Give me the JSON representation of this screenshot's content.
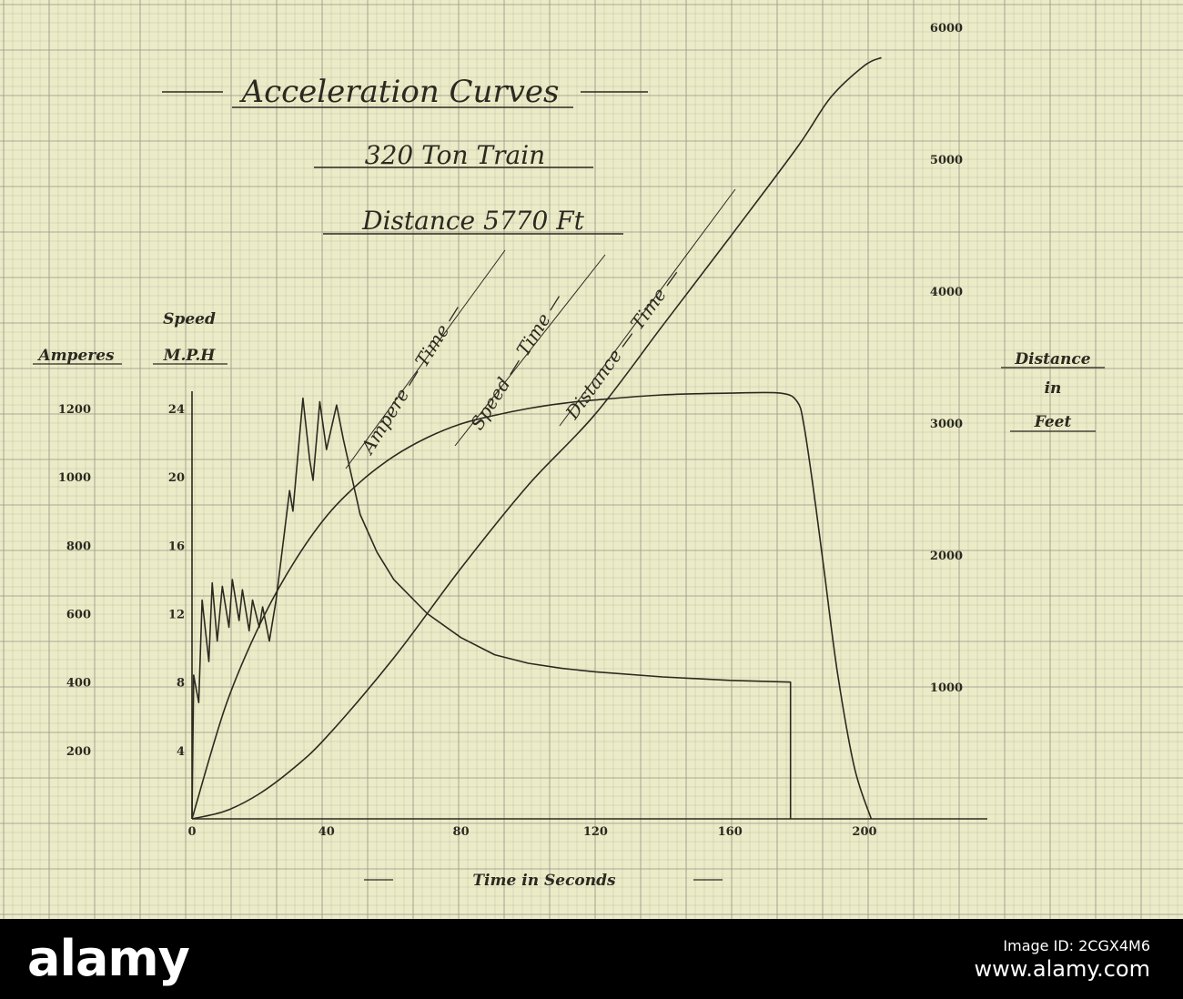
{
  "titles": {
    "main": "Acceleration Curves",
    "train": "320 Ton Train",
    "distance": "Distance 5770 Ft"
  },
  "axis_labels": {
    "amperes": "Amperes",
    "speed_line1": "Speed",
    "speed_line2": "M.P.H",
    "distance_line1": "Distance",
    "distance_line2": "in",
    "distance_line3": "Feet",
    "time": "Time in Seconds"
  },
  "curve_labels": {
    "ampere": "Ampere — Time —",
    "speed": "Speed — Time —",
    "distance": "Distance — Time —"
  },
  "colors": {
    "paper": "#ecebc8",
    "grid": "#9a9a8a",
    "ink": "#2a2a20"
  },
  "chart_data": {
    "type": "line",
    "title": "Acceleration Curves",
    "subtitle": "320 Ton Train — Distance 5770 Ft",
    "xlabel": "Time in Seconds",
    "xlim": [
      0,
      200
    ],
    "x_ticks": [
      "0",
      "40",
      "80",
      "120",
      "160",
      "200"
    ],
    "axes": {
      "amperes": {
        "label": "Amperes",
        "range": [
          0,
          1200
        ],
        "ticks": [
          "200",
          "400",
          "600",
          "800",
          "1000",
          "1200"
        ]
      },
      "speed": {
        "label": "Speed M.P.H",
        "range": [
          0,
          24
        ],
        "ticks": [
          "4",
          "8",
          "12",
          "16",
          "20",
          "24"
        ]
      },
      "distance": {
        "label": "Distance in Feet",
        "range": [
          0,
          6000
        ],
        "ticks": [
          "1000",
          "2000",
          "3000",
          "4000",
          "5000",
          "6000"
        ]
      }
    },
    "grid": true,
    "series": [
      {
        "name": "Ampere — Time —",
        "axis": "amperes",
        "x": [
          0,
          0.5,
          2,
          3,
          5,
          6,
          7.5,
          9,
          11,
          12,
          14,
          15,
          17,
          18,
          20,
          21,
          23,
          25,
          29,
          30,
          33,
          35,
          36,
          38,
          40,
          43,
          45,
          50,
          55,
          60,
          70,
          80,
          90,
          100,
          110,
          120,
          140,
          160,
          178,
          178
        ],
        "y": [
          0,
          420,
          340,
          640,
          460,
          690,
          520,
          680,
          560,
          700,
          580,
          670,
          550,
          640,
          560,
          620,
          520,
          640,
          960,
          900,
          1230,
          1050,
          990,
          1220,
          1080,
          1210,
          1110,
          890,
          780,
          700,
          600,
          530,
          480,
          455,
          440,
          430,
          415,
          405,
          400,
          0
        ]
      },
      {
        "name": "Speed — Time —",
        "axis": "speed",
        "x": [
          0,
          10,
          20,
          30,
          40,
          50,
          60,
          70,
          80,
          90,
          100,
          110,
          120,
          140,
          160,
          175,
          180,
          182,
          185,
          188,
          192,
          197,
          202
        ],
        "y": [
          0,
          6.6,
          11.3,
          14.9,
          17.7,
          19.7,
          21.2,
          22.3,
          23.1,
          23.6,
          24.0,
          24.3,
          24.5,
          24.8,
          24.9,
          24.9,
          24.4,
          23.0,
          19.0,
          14.5,
          8.5,
          3.0,
          0
        ]
      },
      {
        "name": "Distance — Time —",
        "axis": "distance",
        "x": [
          0,
          10,
          20,
          30,
          40,
          60,
          80,
          100,
          120,
          140,
          160,
          180,
          190,
          200,
          205
        ],
        "y": [
          0,
          60,
          190,
          380,
          620,
          1220,
          1900,
          2530,
          3070,
          3740,
          4410,
          5090,
          5470,
          5710,
          5770
        ]
      }
    ]
  },
  "stock": {
    "logo": "alamy",
    "image_id_label": "Image ID: 2CGX4M6",
    "site": "www.alamy.com"
  }
}
